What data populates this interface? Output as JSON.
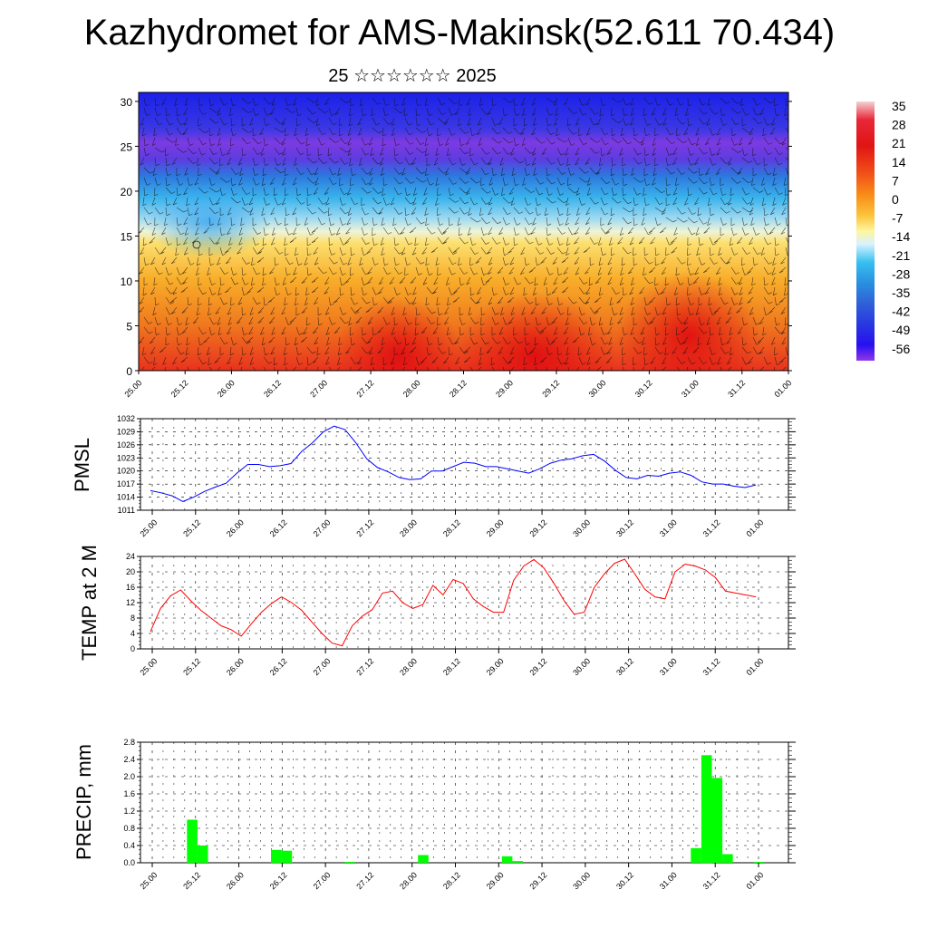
{
  "header": {
    "title": "Kazhydromet for AMS-Makinsk(52.611 70.434)",
    "subtitle": "25 ☆☆☆☆☆☆ 2025"
  },
  "chart_data": [
    {
      "type": "heatmap",
      "title": "",
      "yticks": [
        "0",
        "5",
        "10",
        "15",
        "20",
        "25",
        "30"
      ],
      "ylim": [
        0,
        31
      ],
      "xticks": [
        "25.00",
        "25.12",
        "26.00",
        "26.12",
        "27.00",
        "27.12",
        "28.00",
        "28.12",
        "29.00",
        "29.12",
        "30.00",
        "30.12",
        "31.00",
        "31.12",
        "01.00"
      ],
      "colorbar": {
        "labels": [
          "35",
          "28",
          "21",
          "14",
          "7",
          "0",
          "-7",
          "-14",
          "-21",
          "-28",
          "-35",
          "-42",
          "-49",
          "-56"
        ],
        "colors": [
          "#f0c8c8",
          "#e8283a",
          "#e01818",
          "#f04818",
          "#f88a18",
          "#fcc040",
          "#fff8a0",
          "#c8f0ff",
          "#38c0f0",
          "#2890e0",
          "#3060d8",
          "#2838e0",
          "#2810f0",
          "#8c30e8"
        ]
      }
    },
    {
      "type": "line",
      "ylabel": "PMSL",
      "color": "#0000ff",
      "ylim": [
        1011,
        1032
      ],
      "yticks": [
        "1011",
        "1014",
        "1017",
        "1020",
        "1023",
        "1026",
        "1029",
        "1032"
      ],
      "xticks": [
        "25.00",
        "25.12",
        "26.00",
        "26.12",
        "27.00",
        "27.12",
        "28.00",
        "28.12",
        "29.00",
        "29.12",
        "30.00",
        "30.12",
        "31.00",
        "31.12",
        "01.00"
      ],
      "values": [
        1015.5,
        1015,
        1014.3,
        1013,
        1014,
        1015.3,
        1016.3,
        1017.2,
        1019.5,
        1021.5,
        1021.5,
        1021,
        1021.2,
        1021.7,
        1024.5,
        1026.5,
        1029,
        1030.3,
        1029.5,
        1026.5,
        1022.8,
        1020.8,
        1019.8,
        1018.5,
        1018,
        1018.2,
        1020,
        1020,
        1021,
        1022,
        1021.8,
        1021,
        1021,
        1020.5,
        1020,
        1019.5,
        1020.5,
        1021.8,
        1022.5,
        1022.8,
        1023.5,
        1023.8,
        1022.3,
        1020.2,
        1018.5,
        1018.2,
        1019,
        1018.8,
        1019.5,
        1019.8,
        1019,
        1017.5,
        1017,
        1017,
        1016.5,
        1016.2,
        1016.8
      ]
    },
    {
      "type": "line",
      "ylabel": "TEMP at 2 M",
      "color": "#ff0000",
      "ylim": [
        0,
        24
      ],
      "yticks": [
        "0",
        "4",
        "8",
        "12",
        "16",
        "20",
        "24"
      ],
      "xticks": [
        "25.00",
        "25.12",
        "26.00",
        "26.12",
        "27.00",
        "27.12",
        "28.00",
        "28.12",
        "29.00",
        "29.12",
        "30.00",
        "30.12",
        "31.00",
        "31.12",
        "01.00"
      ],
      "values": [
        4.5,
        10.5,
        13.8,
        15.3,
        12.5,
        10,
        8,
        6,
        5,
        3.3,
        6.5,
        9.5,
        11.8,
        13.5,
        12,
        10,
        7,
        4,
        1.5,
        0.8,
        6,
        8.5,
        10.2,
        14.5,
        15,
        12,
        10.5,
        11.5,
        16.5,
        14,
        18,
        17,
        13,
        11,
        9.5,
        9.5,
        17.8,
        21.5,
        23.2,
        21,
        17,
        12.5,
        9,
        9.5,
        16,
        19.5,
        22.2,
        23.3,
        19.5,
        15.5,
        13.5,
        13,
        20,
        22,
        21.5,
        20.5,
        18.5,
        15,
        14.5,
        14,
        13.5
      ]
    },
    {
      "type": "bar",
      "ylabel": "PRECIP, mm",
      "color": "#00ff00",
      "ylim": [
        0,
        2.8
      ],
      "yticks": [
        "0.0",
        "0.4",
        "0.8",
        "1.2",
        "1.6",
        "2.0",
        "2.4",
        "2.8"
      ],
      "xticks": [
        "25.00",
        "25.12",
        "26.00",
        "26.12",
        "27.00",
        "27.12",
        "28.00",
        "28.12",
        "29.00",
        "29.12",
        "30.00",
        "30.12",
        "31.00",
        "31.12",
        "01.00"
      ],
      "values": [
        0,
        0,
        0,
        0,
        1.0,
        0.4,
        0,
        0,
        0,
        0,
        0,
        0,
        0.3,
        0.28,
        0,
        0,
        0,
        0,
        0,
        0.02,
        0,
        0,
        0,
        0,
        0,
        0,
        0.18,
        0,
        0,
        0,
        0,
        0,
        0,
        0,
        0.15,
        0.04,
        0,
        0,
        0,
        0,
        0,
        0,
        0,
        0,
        0,
        0,
        0,
        0,
        0,
        0,
        0,
        0,
        0.34,
        2.5,
        1.97,
        0.2,
        0,
        0,
        0.02,
        0
      ]
    }
  ]
}
